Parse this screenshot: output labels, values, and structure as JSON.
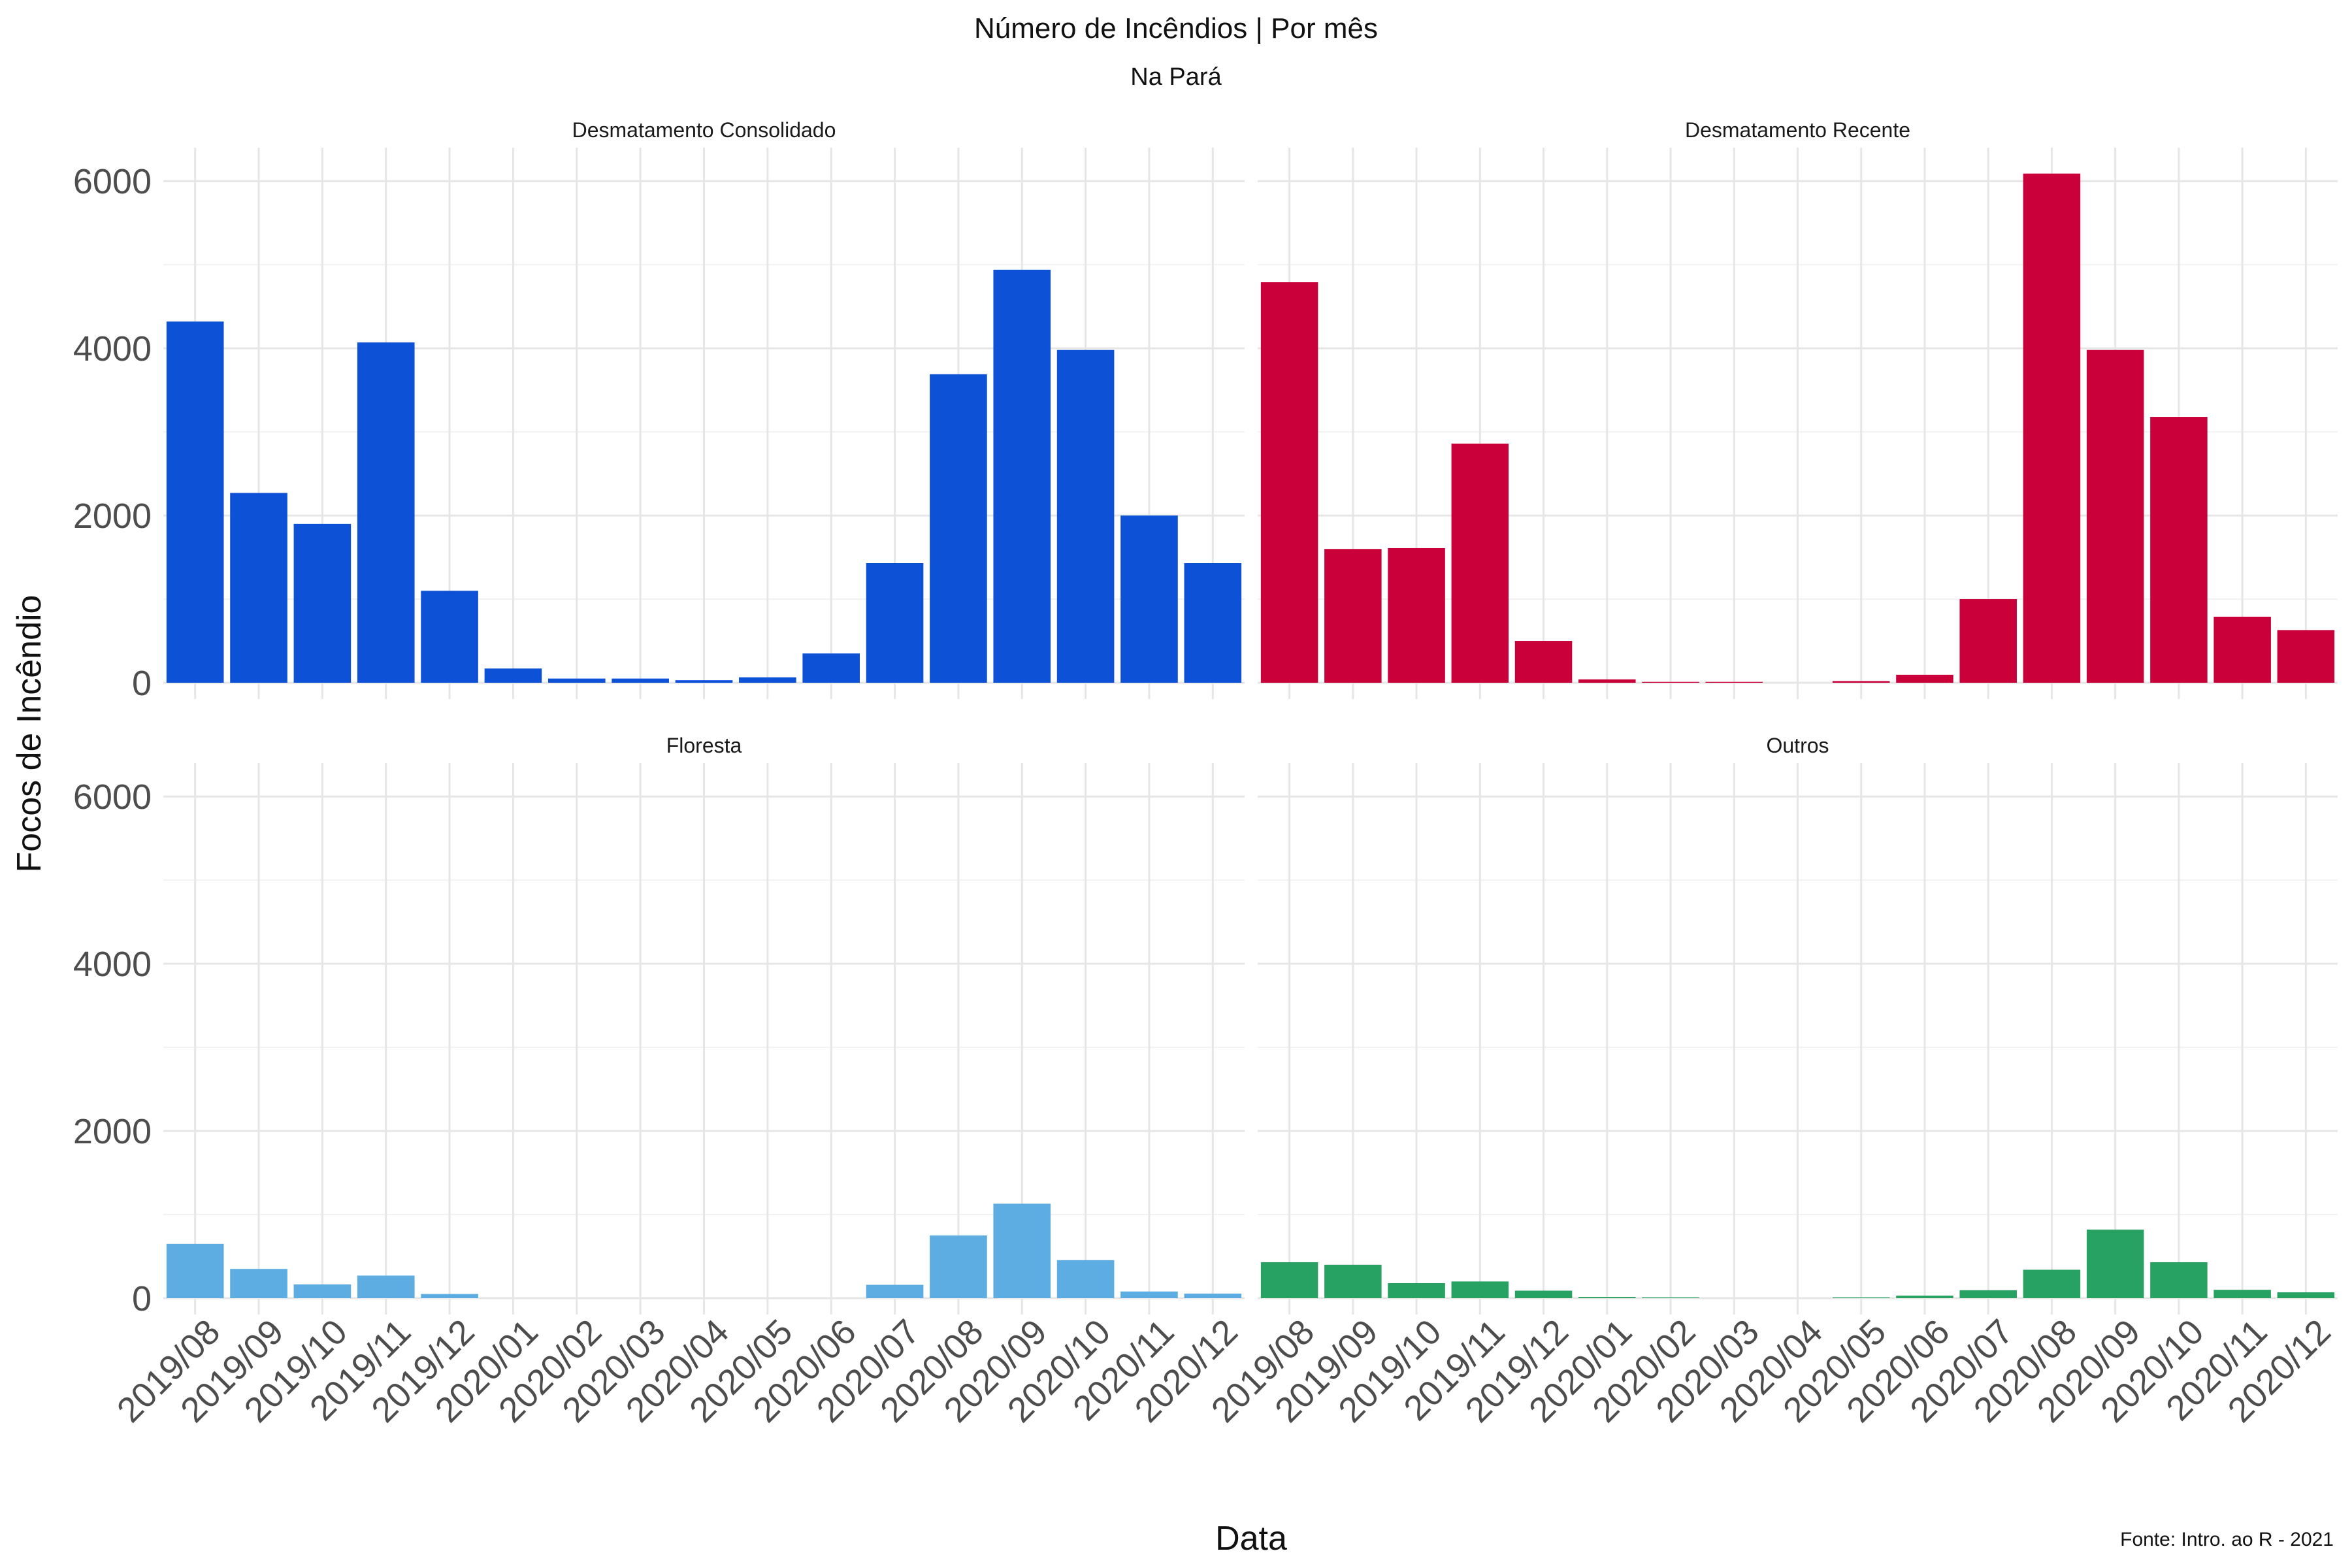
{
  "chart_data": {
    "type": "bar",
    "title": "Número de Incêndios | Por mês",
    "subtitle": "Na Pará",
    "xlabel": "Data",
    "ylabel": "Focos de Incêndio",
    "caption": "Fonte: Intro. ao R - 2021",
    "layout": "facet-grid-2x2",
    "shared_y_axis": true,
    "ylim": [
      0,
      6400
    ],
    "yticks": [
      0,
      2000,
      4000,
      6000
    ],
    "grid": true,
    "legend": "none",
    "categories": [
      "2019/08",
      "2019/09",
      "2019/10",
      "2019/11",
      "2019/12",
      "2020/01",
      "2020/02",
      "2020/03",
      "2020/04",
      "2020/05",
      "2020/06",
      "2020/07",
      "2020/08",
      "2020/09",
      "2020/10",
      "2020/11",
      "2020/12"
    ],
    "panels": [
      {
        "name": "Desmatamento Consolidado",
        "color": "#0D52D6",
        "values": [
          4320,
          2270,
          1900,
          4070,
          1100,
          170,
          50,
          50,
          30,
          65,
          350,
          1430,
          3690,
          4940,
          3980,
          2000,
          1430
        ]
      },
      {
        "name": "Desmatamento Recente",
        "color": "#C9003A",
        "values": [
          4790,
          1600,
          1610,
          2860,
          500,
          40,
          10,
          10,
          0,
          20,
          95,
          1000,
          6090,
          3980,
          3180,
          790,
          630
        ]
      },
      {
        "name": "Floresta",
        "color": "#5DADE2",
        "values": [
          650,
          350,
          165,
          270,
          50,
          0,
          0,
          0,
          0,
          0,
          0,
          160,
          750,
          1130,
          455,
          80,
          55
        ]
      },
      {
        "name": "Outros",
        "color": "#28A262",
        "values": [
          430,
          400,
          180,
          200,
          90,
          15,
          10,
          0,
          0,
          10,
          30,
          95,
          340,
          820,
          430,
          100,
          70
        ]
      }
    ]
  }
}
